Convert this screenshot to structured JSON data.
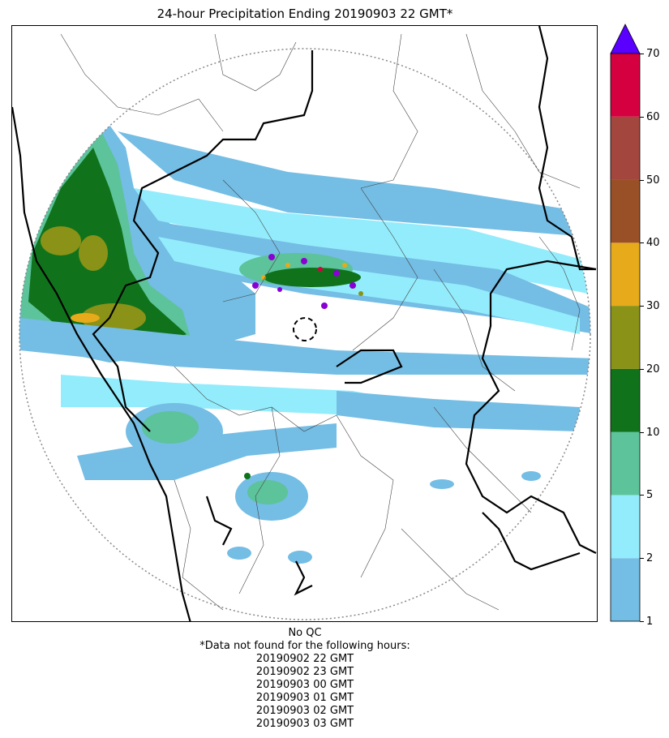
{
  "title": "24-hour Precipitation Ending 20190903 22 GMT*",
  "footer": {
    "qc": "No QC",
    "note": "*Data not found for the following hours:",
    "missing_hours": [
      "20190902 22 GMT",
      "20190902 23 GMT",
      "20190903 00 GMT",
      "20190903 01 GMT",
      "20190903 02 GMT",
      "20190903 03 GMT"
    ]
  },
  "colorbar": {
    "ticks": [
      "1",
      "2",
      "5",
      "10",
      "20",
      "30",
      "40",
      "50",
      "60",
      "70"
    ],
    "colors": [
      "#74bde4",
      "#93ecfc",
      "#5cc39b",
      "#10731b",
      "#8a9217",
      "#e6aa1a",
      "#9a5026",
      "#a3463e",
      "#d5003f"
    ],
    "extend_color": "#5a00ff"
  },
  "legend_colors": {
    "cyan": "#93ecfc",
    "light_blue": "#74bde4",
    "light_green": "#5cc39b",
    "dark_green": "#10731b",
    "olive": "#8a9217",
    "orange": "#e6aa1a",
    "purple": "#8a00d4"
  }
}
